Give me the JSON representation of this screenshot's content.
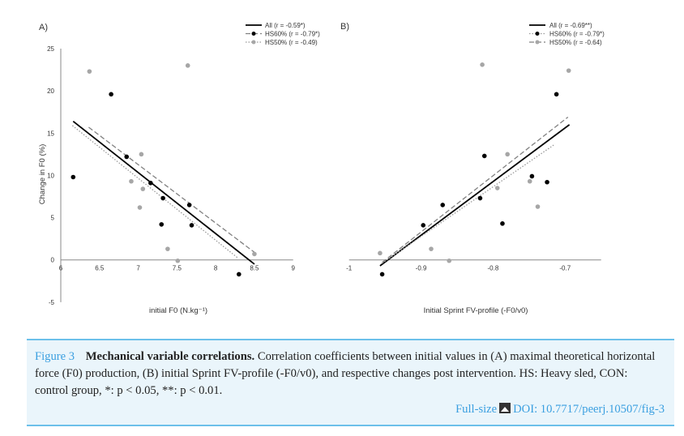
{
  "chart_data": [
    {
      "type": "scatter",
      "panel_label": "A)",
      "xlabel": "initial F0 (N.kg⁻¹)",
      "ylabel": "Change in F0 (%)",
      "xlim": [
        6,
        9
      ],
      "ylim": [
        -5,
        25
      ],
      "xticks": [
        "6",
        "6.5",
        "7",
        "7.5",
        "8",
        "8.5",
        "9"
      ],
      "xtick_values": [
        6,
        6.5,
        7,
        7.5,
        8,
        8.5,
        9
      ],
      "yticks": [
        "-5",
        "0",
        "5",
        "10",
        "15",
        "20",
        "25"
      ],
      "ytick_values": [
        -5,
        0,
        5,
        10,
        15,
        20,
        25
      ],
      "legend_position": "top-right",
      "legend": [
        "All (r = -0.59*)",
        "HS60% (r = -0.79*)",
        "HS50% (r = -0.49)"
      ],
      "series": [
        {
          "name": "HS60%",
          "color": "#000000",
          "points": [
            [
              6.16,
              9.8
            ],
            [
              6.65,
              19.6
            ],
            [
              6.85,
              12.2
            ],
            [
              7.16,
              9.1
            ],
            [
              7.32,
              7.3
            ],
            [
              7.3,
              4.2
            ],
            [
              7.66,
              6.5
            ],
            [
              7.69,
              4.1
            ],
            [
              8.3,
              -1.7
            ]
          ]
        },
        {
          "name": "HS50%",
          "color": "#a6a6a6",
          "points": [
            [
              6.37,
              22.3
            ],
            [
              7.64,
              23.0
            ],
            [
              7.04,
              12.5
            ],
            [
              6.91,
              9.3
            ],
            [
              7.06,
              8.4
            ],
            [
              7.02,
              6.2
            ],
            [
              7.38,
              1.3
            ],
            [
              7.51,
              -0.1
            ],
            [
              8.5,
              0.7
            ]
          ]
        }
      ],
      "trendlines": [
        {
          "name": "All",
          "style": "solid",
          "color": "#000000",
          "from": [
            6.16,
            16.4
          ],
          "to": [
            8.5,
            -0.5
          ]
        },
        {
          "name": "HS60%",
          "style": "dashed",
          "color": "#808080",
          "from": [
            6.36,
            15.7
          ],
          "to": [
            8.5,
            0.9
          ]
        },
        {
          "name": "HS50%",
          "style": "dotted",
          "color": "#999999",
          "from": [
            6.15,
            15.9
          ],
          "to": [
            8.29,
            0.2
          ]
        }
      ]
    },
    {
      "type": "scatter",
      "panel_label": "B)",
      "xlabel": "Initial Sprint FV-profile (-F0/v0)",
      "xlim": [
        -1,
        -0.65
      ],
      "ylim": [
        -5,
        25
      ],
      "xticks": [
        "-1",
        "-0.9",
        "-0.8",
        "-0.7"
      ],
      "xtick_values": [
        -1,
        -0.9,
        -0.8,
        -0.7
      ],
      "legend_position": "top-right",
      "legend": [
        "All (r = -0.69**)",
        "HS60% (r = -0.79*)",
        "HS50% (r = -0.64)"
      ],
      "series": [
        {
          "name": "HS60%",
          "color": "#000000",
          "points": [
            [
              -0.954,
              -1.7
            ],
            [
              -0.897,
              4.1
            ],
            [
              -0.87,
              6.5
            ],
            [
              -0.818,
              7.3
            ],
            [
              -0.812,
              12.3
            ],
            [
              -0.787,
              4.3
            ],
            [
              -0.746,
              9.9
            ],
            [
              -0.725,
              9.2
            ],
            [
              -0.712,
              19.6
            ]
          ]
        },
        {
          "name": "HS50%",
          "color": "#a6a6a6",
          "points": [
            [
              -0.957,
              0.8
            ],
            [
              -0.886,
              1.3
            ],
            [
              -0.861,
              -0.1
            ],
            [
              -0.815,
              23.1
            ],
            [
              -0.794,
              8.5
            ],
            [
              -0.78,
              12.5
            ],
            [
              -0.749,
              9.3
            ],
            [
              -0.738,
              6.3
            ],
            [
              -0.695,
              22.4
            ]
          ]
        }
      ],
      "trendlines": [
        {
          "name": "All",
          "style": "solid",
          "color": "#000000",
          "from": [
            -0.957,
            -0.7
          ],
          "to": [
            -0.694,
            16.0
          ]
        },
        {
          "name": "HS60%",
          "style": "dotted",
          "color": "#999999",
          "from": [
            -0.954,
            -0.4
          ],
          "to": [
            -0.714,
            13.7
          ]
        },
        {
          "name": "HS50%",
          "style": "dashed",
          "color": "#808080",
          "from": [
            -0.954,
            -0.3
          ],
          "to": [
            -0.696,
            16.9
          ]
        }
      ]
    }
  ],
  "caption": {
    "label": "Figure 3",
    "title": "Mechanical variable correlations.",
    "text": "Correlation coefficients between initial values in (A) maximal theoretical horizontal force (F0) production, (B) initial Sprint FV-profile (-F0/v0), and respective changes post intervention. HS: Heavy sled, CON: control group, *: p < 0.05, **: p < 0.01.",
    "fullsize_link": "Full-size",
    "doi_link": "DOI: 10.7717/peerj.10507/fig-3"
  },
  "colors": {
    "accent": "#3a9fe0",
    "caption_bg": "#eaf5fb",
    "caption_border": "#6cc0ea"
  }
}
